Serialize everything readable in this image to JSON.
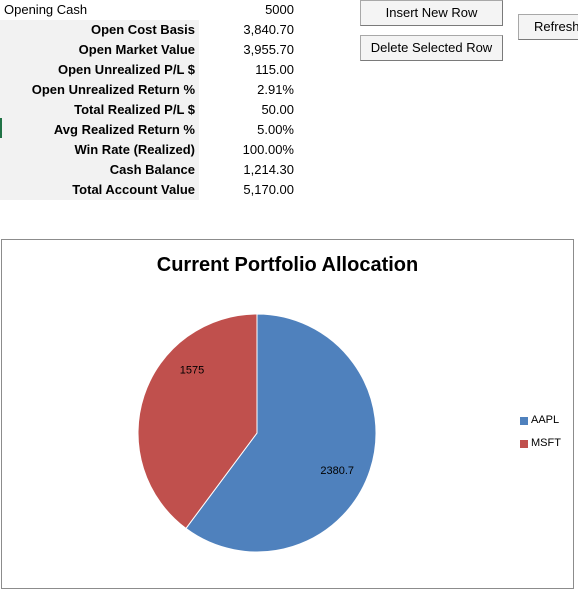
{
  "opening": {
    "label": "Opening Cash",
    "value": "5000"
  },
  "summary": [
    {
      "label": "Open Cost Basis",
      "value": "3,840.70"
    },
    {
      "label": "Open Market Value",
      "value": "3,955.70"
    },
    {
      "label": "Open Unrealized P/L $",
      "value": "115.00"
    },
    {
      "label": "Open Unrealized Return %",
      "value": "2.91%"
    },
    {
      "label": "Total Realized P/L $",
      "value": "50.00"
    },
    {
      "label": "Avg Realized Return %",
      "value": "5.00%"
    },
    {
      "label": "Win Rate (Realized)",
      "value": "100.00%"
    },
    {
      "label": "Cash Balance",
      "value": "1,214.30"
    },
    {
      "label": "Total Account Value",
      "value": "5,170.00"
    }
  ],
  "buttons": {
    "insert_row": "Insert New Row",
    "delete_row": "Delete Selected Row",
    "refresh": "Refresh"
  },
  "chart_data": {
    "type": "pie",
    "title": "Current Portfolio Allocation",
    "categories": [
      "AAPL",
      "MSFT"
    ],
    "values": [
      2380.7,
      1575
    ],
    "data_labels": [
      "2380.7",
      "1575"
    ],
    "colors": [
      "#4f81bd",
      "#c0504d"
    ],
    "start_angle": "12 o'clock",
    "direction": "clockwise",
    "legend_position": "right"
  }
}
